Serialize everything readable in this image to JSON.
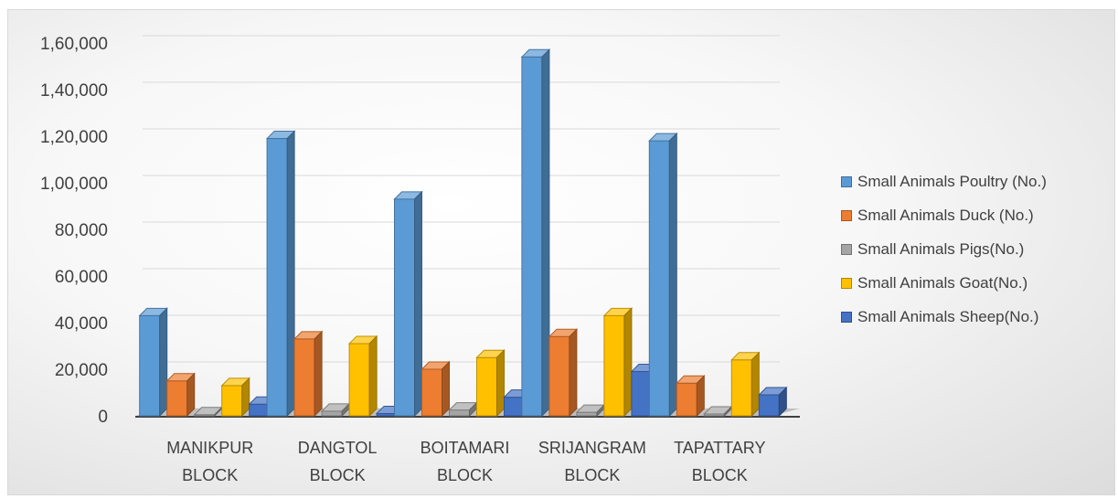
{
  "chart_data": {
    "type": "bar",
    "title": "",
    "xlabel": "",
    "ylabel": "",
    "ylim": [
      0,
      160000
    ],
    "yticks": [
      "0",
      "20,000",
      "40,000",
      "60,000",
      "80,000",
      "1,00,000",
      "1,20,000",
      "1,40,000",
      "1,60,000"
    ],
    "ytick_values": [
      0,
      20000,
      40000,
      60000,
      80000,
      100000,
      120000,
      140000,
      160000
    ],
    "categories": [
      [
        "MANIKPUR",
        "BLOCK"
      ],
      [
        "DANGTOL",
        "BLOCK"
      ],
      [
        "BOITAMARI",
        "BLOCK"
      ],
      [
        "SRIJANGRAM",
        "BLOCK"
      ],
      [
        "TAPATTARY",
        "BLOCK"
      ]
    ],
    "legend_position": "right",
    "grid": true,
    "series": [
      {
        "name": "Small Animals Poultry (No.)",
        "color": "#5b9bd5",
        "values": [
          43000,
          119000,
          93000,
          154000,
          118000
        ]
      },
      {
        "name": "Small Animals Duck (No.)",
        "color": "#ed7d31",
        "values": [
          15000,
          33000,
          20000,
          34000,
          14000
        ]
      },
      {
        "name": "Small Animals Pigs(No.)",
        "color": "#a5a5a5",
        "values": [
          500,
          2000,
          2500,
          1500,
          800
        ]
      },
      {
        "name": "Small Animals Goat(No.)",
        "color": "#ffc000",
        "values": [
          13000,
          31000,
          25000,
          43000,
          24000
        ]
      },
      {
        "name": "Small Animals Sheep(No.)",
        "color": "#4472c4",
        "values": [
          5000,
          1000,
          8000,
          19000,
          9000
        ]
      }
    ]
  }
}
